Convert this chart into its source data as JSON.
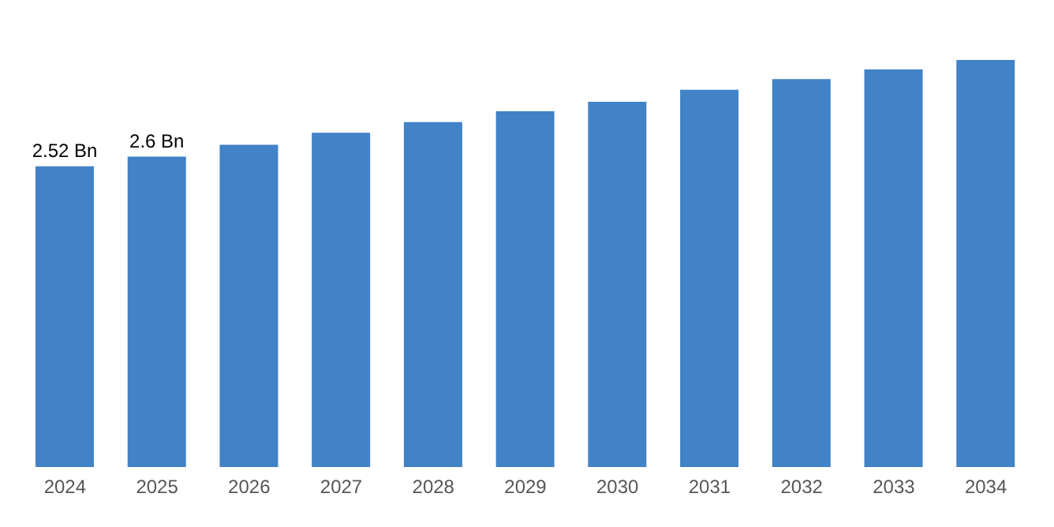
{
  "chart_data": {
    "type": "bar",
    "categories": [
      "2024",
      "2025",
      "2026",
      "2027",
      "2028",
      "2029",
      "2030",
      "2031",
      "2032",
      "2033",
      "2034"
    ],
    "values": [
      2.52,
      2.6,
      2.7,
      2.8,
      2.89,
      2.98,
      3.06,
      3.16,
      3.25,
      3.33,
      3.41
    ],
    "value_labels": [
      "2.52 Bn",
      "2.6 Bn",
      null,
      null,
      null,
      null,
      null,
      null,
      null,
      null,
      null
    ],
    "color": "#4282c6",
    "grid": false,
    "legend": false
  }
}
